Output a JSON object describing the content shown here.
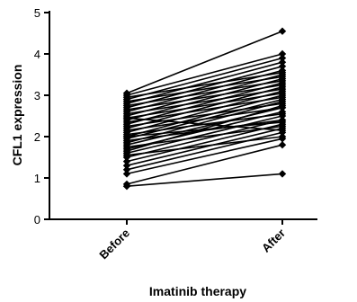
{
  "chart_data": {
    "type": "line",
    "categories": [
      "Before",
      "After"
    ],
    "xlabel": "Imatinib therapy",
    "ylabel": "CFL1 expression",
    "ylim": [
      0,
      5
    ],
    "yticks": [
      0,
      1,
      2,
      3,
      4,
      5
    ],
    "grid": false,
    "legend": "none",
    "line_color": "#000000",
    "pairs": [
      [
        0.8,
        1.1
      ],
      [
        0.85,
        1.8
      ],
      [
        1.1,
        1.95
      ],
      [
        1.2,
        2.1
      ],
      [
        1.3,
        2.2
      ],
      [
        1.4,
        2.3
      ],
      [
        1.5,
        2.4
      ],
      [
        1.55,
        2.0
      ],
      [
        1.6,
        2.5
      ],
      [
        1.7,
        2.6
      ],
      [
        1.75,
        2.25
      ],
      [
        1.8,
        2.7
      ],
      [
        1.85,
        2.85
      ],
      [
        1.9,
        2.4
      ],
      [
        1.95,
        2.9
      ],
      [
        2.0,
        3.0
      ],
      [
        2.05,
        2.55
      ],
      [
        2.1,
        3.1
      ],
      [
        2.15,
        2.7
      ],
      [
        2.2,
        3.2
      ],
      [
        2.25,
        2.8
      ],
      [
        2.3,
        3.3
      ],
      [
        2.35,
        2.95
      ],
      [
        2.4,
        3.4
      ],
      [
        2.45,
        3.05
      ],
      [
        2.5,
        3.5
      ],
      [
        2.55,
        3.15
      ],
      [
        2.6,
        3.6
      ],
      [
        2.65,
        3.25
      ],
      [
        2.7,
        3.7
      ],
      [
        2.75,
        3.35
      ],
      [
        2.8,
        3.8
      ],
      [
        2.85,
        3.45
      ],
      [
        2.9,
        3.9
      ],
      [
        2.95,
        3.55
      ],
      [
        3.0,
        4.0
      ],
      [
        3.05,
        4.55
      ],
      [
        2.45,
        2.15
      ],
      [
        2.0,
        2.35
      ],
      [
        1.65,
        2.75
      ]
    ]
  }
}
